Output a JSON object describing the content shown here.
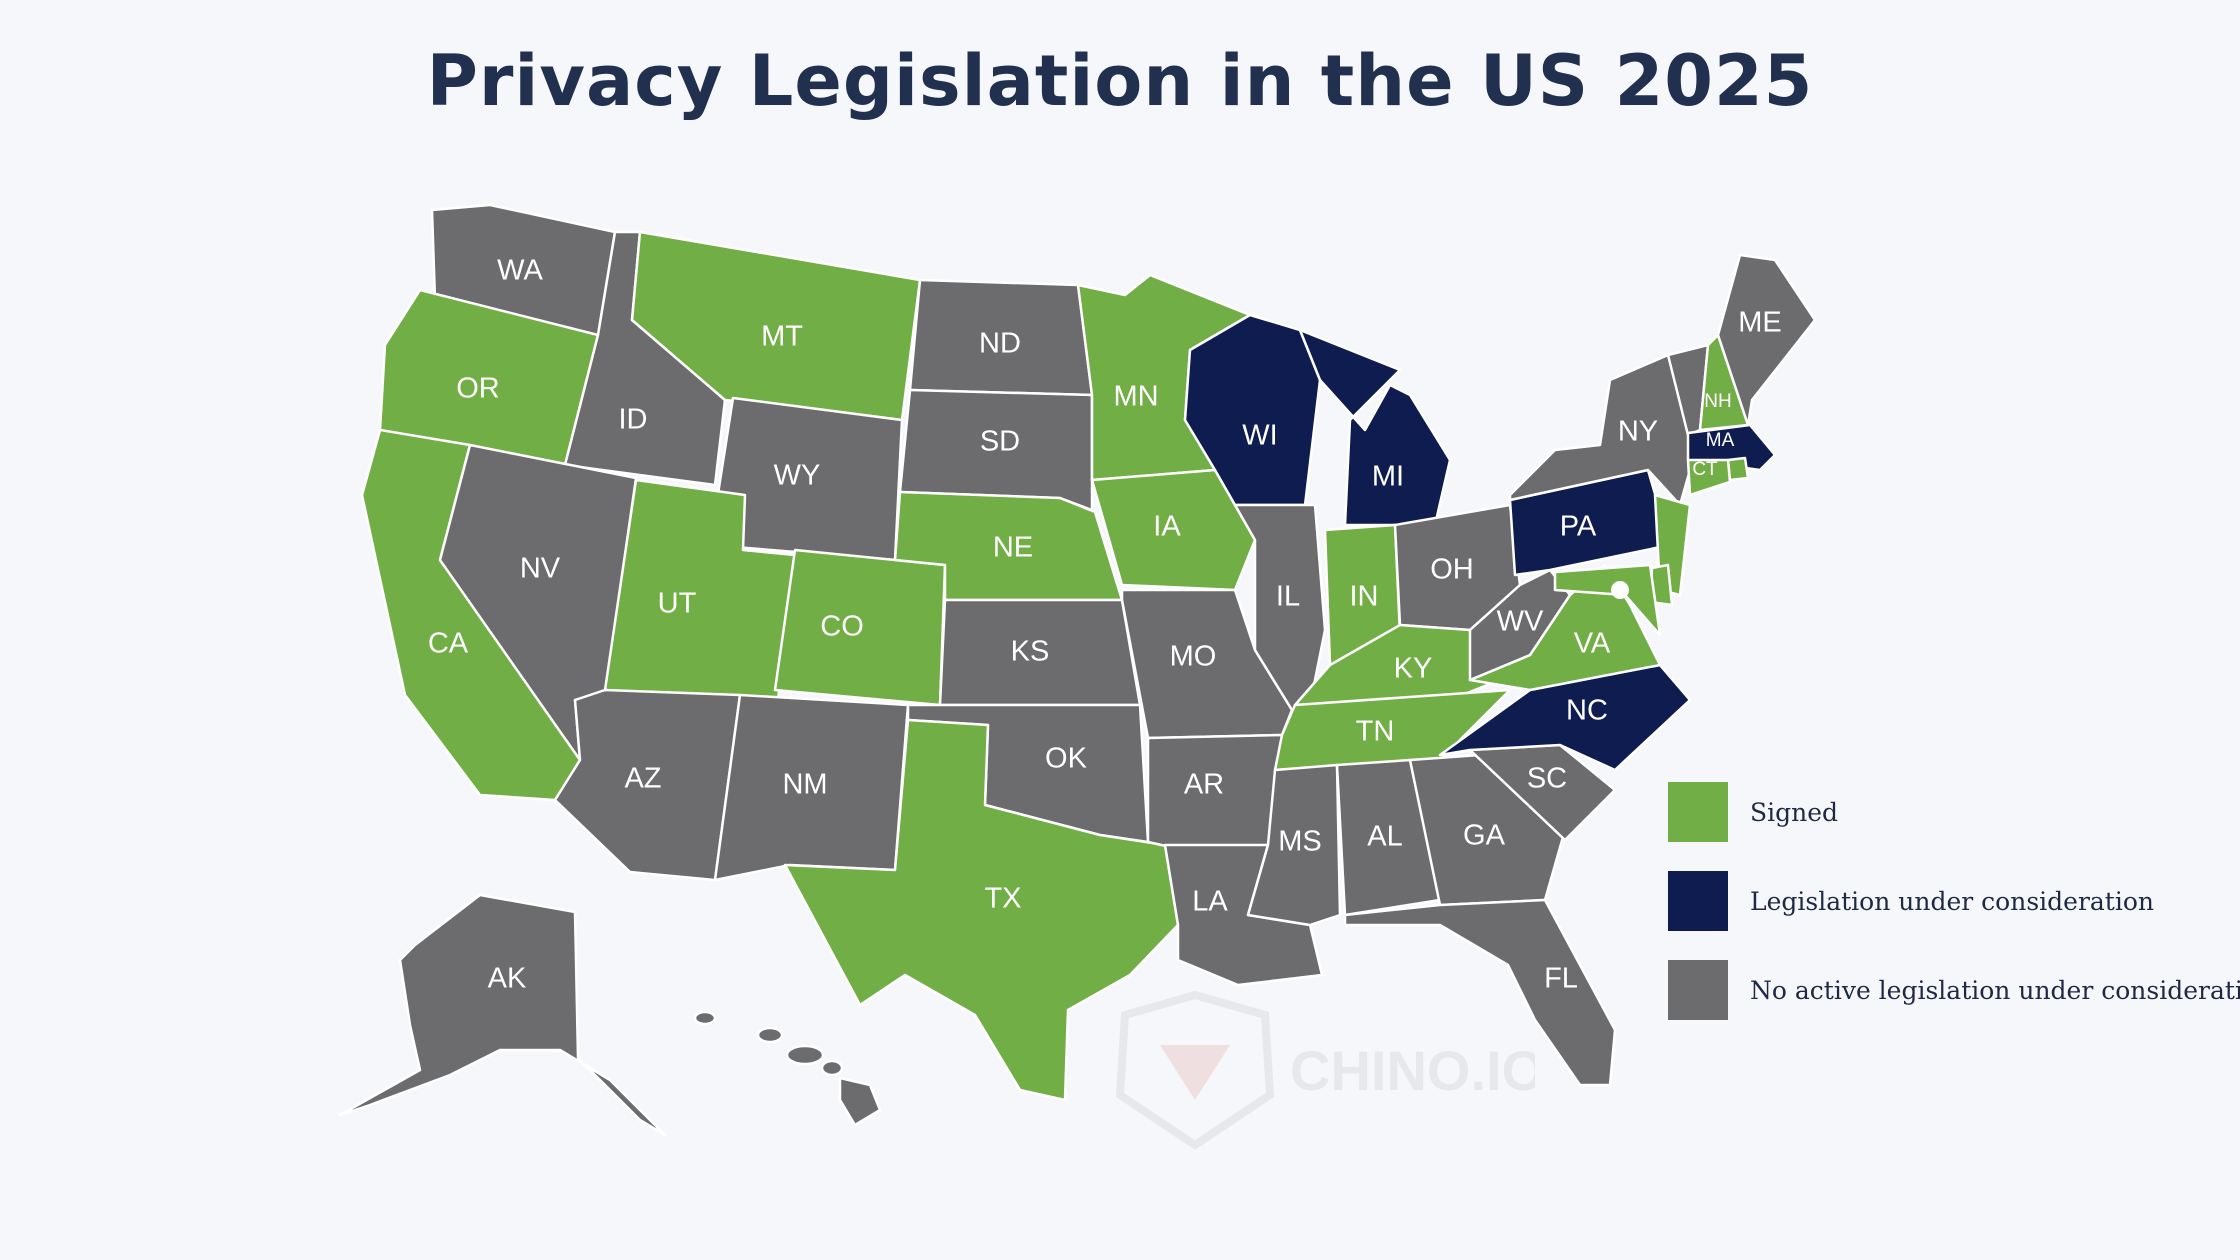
{
  "title": "Privacy Legislation in the US 2025",
  "colors": {
    "signed": "#72ae46",
    "under_consideration": "#0f1c50",
    "none": "#6c6c6e",
    "title": "#22304f"
  },
  "states": {
    "WA": "none",
    "OR": "signed",
    "CA": "signed",
    "ID": "none",
    "NV": "none",
    "MT": "signed",
    "WY": "none",
    "UT": "signed",
    "CO": "signed",
    "AZ": "none",
    "NM": "none",
    "ND": "none",
    "SD": "none",
    "NE": "signed",
    "KS": "none",
    "OK": "none",
    "TX": "signed",
    "MN": "signed",
    "IA": "signed",
    "MO": "none",
    "AR": "none",
    "LA": "none",
    "WI": "under_consideration",
    "IL": "none",
    "MI": "under_consideration",
    "IN": "signed",
    "OH": "none",
    "KY": "signed",
    "TN": "signed",
    "MS": "none",
    "AL": "none",
    "GA": "none",
    "FL": "none",
    "SC": "none",
    "NC": "under_consideration",
    "VA": "signed",
    "WV": "none",
    "PA": "under_consideration",
    "NY": "none",
    "NJ": "signed",
    "DE": "signed",
    "MD": "signed",
    "CT": "signed",
    "RI": "signed",
    "MA": "under_consideration",
    "VT": "none",
    "NH": "signed",
    "ME": "none",
    "AK": "none",
    "HI": "none"
  },
  "legend": [
    {
      "key": "signed",
      "label": "Signed"
    },
    {
      "key": "under_consideration",
      "label": "Legislation under consideration"
    },
    {
      "key": "none",
      "label": "No active legislation under consideration"
    }
  ],
  "watermark": "CHINO.IO"
}
